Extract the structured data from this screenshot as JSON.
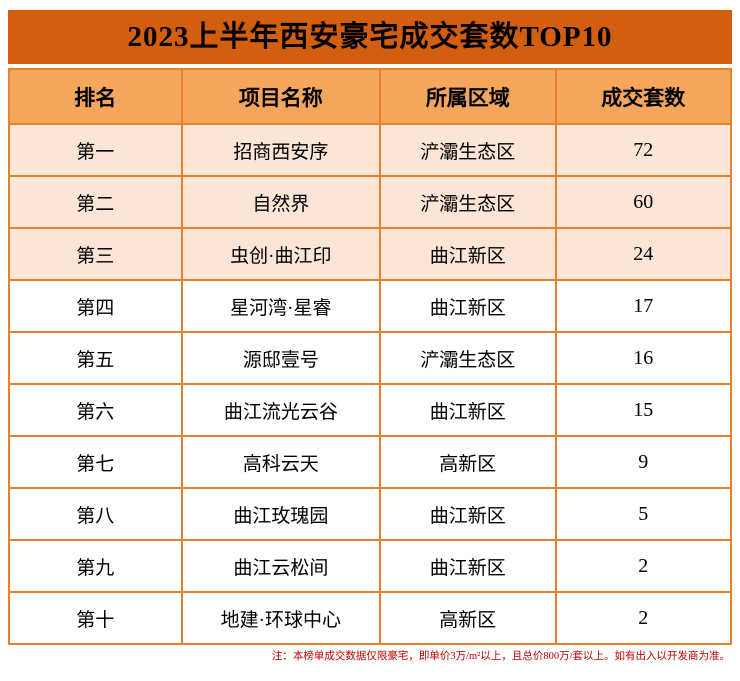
{
  "title": "2023上半年西安豪宅成交套数TOP10",
  "chart_data": {
    "type": "table",
    "title": "2023上半年西安豪宅成交套数TOP10",
    "columns": [
      "排名",
      "项目名称",
      "所属区域",
      "成交套数"
    ],
    "rows": [
      {
        "rank": "第一",
        "project": "招商西安序",
        "district": "浐灞生态区",
        "count": "72",
        "highlighted": true
      },
      {
        "rank": "第二",
        "project": "自然界",
        "district": "浐灞生态区",
        "count": "60",
        "highlighted": true
      },
      {
        "rank": "第三",
        "project": "虫创·曲江印",
        "district": "曲江新区",
        "count": "24",
        "highlighted": true
      },
      {
        "rank": "第四",
        "project": "星河湾·星睿",
        "district": "曲江新区",
        "count": "17",
        "highlighted": false
      },
      {
        "rank": "第五",
        "project": "源邸壹号",
        "district": "浐灞生态区",
        "count": "16",
        "highlighted": false
      },
      {
        "rank": "第六",
        "project": "曲江流光云谷",
        "district": "曲江新区",
        "count": "15",
        "highlighted": false
      },
      {
        "rank": "第七",
        "project": "高科云天",
        "district": "高新区",
        "count": "9",
        "highlighted": false
      },
      {
        "rank": "第八",
        "project": "曲江玫瑰园",
        "district": "曲江新区",
        "count": "5",
        "highlighted": false
      },
      {
        "rank": "第九",
        "project": "曲江云松间",
        "district": "曲江新区",
        "count": "2",
        "highlighted": false
      },
      {
        "rank": "第十",
        "project": "地建·环球中心",
        "district": "高新区",
        "count": "2",
        "highlighted": false
      }
    ],
    "note": "注：本榜单成交数据仅限豪宅，即单价3万/m²以上，且总价800万/套以上。如有出入以开发商为准。"
  },
  "note": "注：本榜单成交数据仅限豪宅，即单价3万/m²以上，且总价800万/套以上。如有出入以开发商为准。",
  "colors": {
    "title_bg": "#d25e0e",
    "header_bg": "#f4a65c",
    "highlight_row_bg": "#fbe5d6",
    "border": "#e8802d",
    "note_text": "#c00000"
  }
}
